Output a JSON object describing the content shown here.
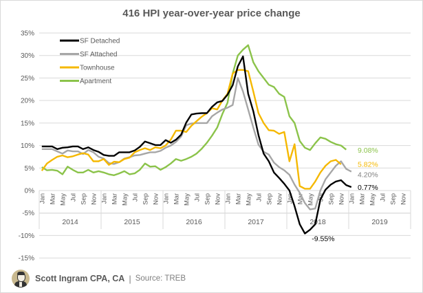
{
  "title": "416 HPI year-over-year price change",
  "footer": {
    "author": "Scott Ingram CPA, CA",
    "separator": "|",
    "source": "Source:  TREB",
    "avatar_icon": "portrait-avatar-icon"
  },
  "chart_data": {
    "type": "line",
    "title": "416 HPI year-over-year price change",
    "xlabel": "",
    "ylabel": "",
    "ylim": [
      -15,
      35
    ],
    "yticks": [
      35,
      30,
      25,
      20,
      15,
      10,
      5,
      0,
      -5,
      -10,
      -15
    ],
    "ytick_labels": [
      "35%",
      "30%",
      "25%",
      "20%",
      "15%",
      "10%",
      "5%",
      "0%",
      "-5%",
      "-10%",
      "-15%"
    ],
    "grid": true,
    "legend_position": "top-left",
    "month_labels": [
      "Jan",
      "Mar",
      "May",
      "Jul",
      "Sep",
      "Nov"
    ],
    "years": [
      "2014",
      "2015",
      "2016",
      "2017",
      "2018",
      "2019"
    ],
    "x_start": "Jan 2014",
    "x_end": "Dec 2019",
    "series": [
      {
        "name": "SF Detached",
        "color": "#000000",
        "values": [
          9.8,
          9.8,
          9.8,
          9.2,
          9.5,
          9.6,
          9.8,
          9.8,
          9.2,
          9.6,
          9.0,
          8.6,
          7.9,
          7.7,
          7.7,
          8.5,
          8.5,
          8.5,
          8.9,
          9.7,
          10.9,
          10.5,
          10.1,
          10.1,
          11.2,
          10.6,
          11.3,
          12.4,
          15.1,
          16.9,
          17.1,
          17.2,
          17.2,
          18.6,
          19.6,
          19.9,
          21.3,
          23.4,
          27.6,
          29.8,
          21.5,
          17.6,
          12.3,
          8.2,
          6.5,
          4.0,
          2.8,
          1.5,
          0.0,
          -3.5,
          -7.5,
          -9.55,
          -8.7,
          -7.5,
          -2.0,
          0.2,
          1.3,
          2.0,
          2.3,
          1.2,
          0.77
        ],
        "end_label": "0.77%",
        "min_label": "-9.55%"
      },
      {
        "name": "SF Attached",
        "color": "#a6a6a6",
        "values": [
          9.2,
          9.2,
          9.2,
          8.7,
          8.2,
          8.9,
          8.7,
          8.7,
          8.1,
          9.0,
          8.5,
          7.5,
          7.1,
          6.1,
          5.9,
          6.3,
          7.1,
          7.4,
          7.8,
          7.9,
          8.2,
          8.5,
          8.5,
          8.8,
          9.5,
          10.0,
          10.8,
          12.0,
          14.5,
          14.9,
          15.0,
          15.0,
          15.0,
          16.5,
          17.3,
          18.0,
          18.4,
          19.0,
          25.0,
          22.0,
          18.0,
          14.0,
          10.2,
          8.6,
          8.0,
          6.2,
          5.2,
          4.5,
          3.5,
          1.3,
          -0.5,
          -2.8,
          -4.2,
          -4.0,
          0.0,
          2.5,
          4.0,
          5.5,
          6.5,
          4.8,
          4.2
        ],
        "end_label": "4.20%"
      },
      {
        "name": "Townhouse",
        "color": "#f5b800",
        "values": [
          4.4,
          6.0,
          6.8,
          7.5,
          7.8,
          7.4,
          7.6,
          8.0,
          8.3,
          8.0,
          6.5,
          6.5,
          7.0,
          5.7,
          6.4,
          6.3,
          7.0,
          7.3,
          8.5,
          9.0,
          9.4,
          9.0,
          9.6,
          9.4,
          10.0,
          11.3,
          13.3,
          13.3,
          13.0,
          14.4,
          15.4,
          16.4,
          17.2,
          18.3,
          18.0,
          20.0,
          21.5,
          26.0,
          26.8,
          26.8,
          26.5,
          22.0,
          17.2,
          15.0,
          13.4,
          13.3,
          12.6,
          13.0,
          6.5,
          10.3,
          1.0,
          0.4,
          0.4,
          2.0,
          4.0,
          5.5,
          6.5,
          6.8,
          5.82
        ],
        "end_label": "5.82%"
      },
      {
        "name": "Apartment",
        "color": "#8bc34a",
        "values": [
          5.2,
          4.5,
          4.6,
          4.4,
          3.6,
          5.3,
          4.6,
          4.0,
          4.0,
          4.6,
          4.0,
          4.3,
          4.0,
          3.6,
          3.4,
          3.8,
          4.3,
          3.6,
          3.8,
          4.6,
          6.0,
          5.3,
          5.4,
          4.6,
          5.2,
          6.0,
          7.0,
          6.6,
          7.0,
          7.5,
          8.2,
          9.3,
          10.6,
          12.2,
          14.0,
          17.0,
          19.5,
          26.0,
          30.0,
          31.3,
          32.3,
          28.5,
          26.5,
          25.0,
          23.5,
          23.0,
          21.5,
          20.8,
          16.5,
          15.0,
          11.0,
          9.5,
          9.0,
          10.5,
          11.8,
          11.5,
          10.8,
          10.3,
          10.0,
          9.08
        ],
        "end_label": "9.08%"
      }
    ]
  }
}
